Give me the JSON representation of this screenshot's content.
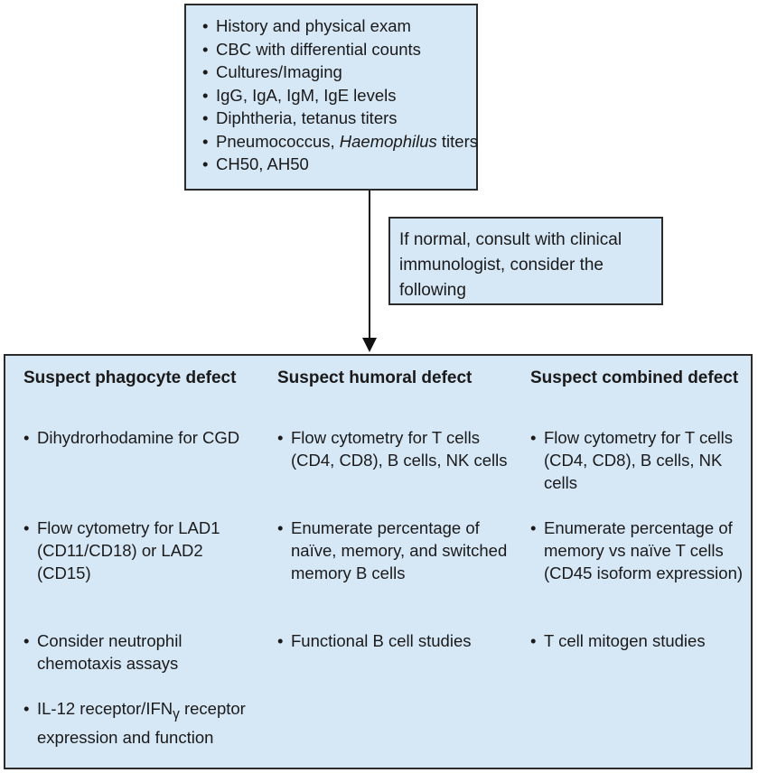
{
  "top_box": {
    "items": [
      {
        "text": "History and physical exam"
      },
      {
        "text": "CBC with differential counts"
      },
      {
        "text": "Cultures/Imaging"
      },
      {
        "text": "IgG, IgA, IgM, IgE levels"
      },
      {
        "text": "Diphtheria, tetanus titers"
      },
      {
        "pre": "Pneumococcus, ",
        "italic": "Haemophilus",
        "post": " titers"
      },
      {
        "text": "CH50, AH50"
      }
    ]
  },
  "note": "If normal, consult with clinical immunologist, consider the following",
  "columns": [
    {
      "heading": "Suspect phagocyte defect",
      "items": [
        {
          "text": "Dihydrorhodamine for CGD"
        },
        {
          "text": "Flow cytometry for LAD1 (CD11/CD18) or LAD2 (CD15)"
        },
        {
          "text": "Consider neutrophil chemotaxis assays"
        },
        {
          "pre": "IL-12 receptor/IFN",
          "sub": "γ",
          "post": " receptor expression and function"
        }
      ]
    },
    {
      "heading": "Suspect humoral defect",
      "items": [
        {
          "text": "Flow cytometry for T cells (CD4, CD8), B cells, NK cells"
        },
        {
          "text": "Enumerate percentage of naïve, memory, and switched memory B cells"
        },
        {
          "text": "Functional B cell studies"
        }
      ]
    },
    {
      "heading": "Suspect combined defect",
      "items": [
        {
          "text": "Flow cytometry for T cells (CD4, CD8), B cells, NK cells"
        },
        {
          "text": "Enumerate percentage of memory vs naïve T cells (CD45 isoform expression)"
        },
        {
          "text": "T cell mitogen studies"
        }
      ]
    }
  ]
}
